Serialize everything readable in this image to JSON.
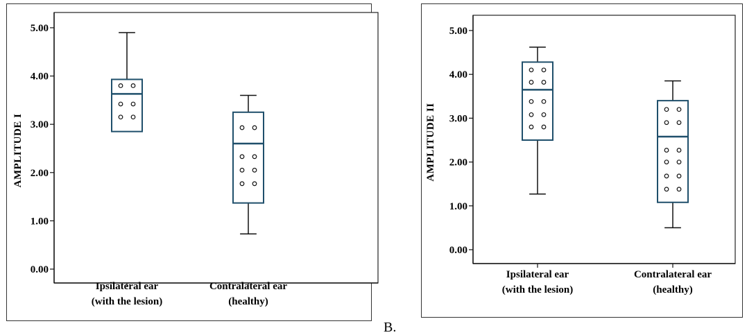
{
  "panel_label": "B.",
  "chart_data": [
    {
      "type": "box",
      "ylabel": "AMPLITUDE  I",
      "ylim": [
        0,
        5
      ],
      "yticks": [
        "0.00",
        "1.00",
        "2.00",
        "3.00",
        "4.00",
        "5.00"
      ],
      "categories": [
        {
          "line1": "Ipsilateral ear",
          "line2": "(with the lesion)"
        },
        {
          "line1": "Contralateral ear",
          "line2": "(healthy)"
        }
      ],
      "boxes": [
        {
          "min": 2.85,
          "q1": 2.85,
          "median": 3.63,
          "q3": 3.93,
          "max": 4.9,
          "dot_rows": [
            3.8,
            3.42,
            3.15
          ]
        },
        {
          "min": 0.73,
          "q1": 1.37,
          "median": 2.6,
          "q3": 3.25,
          "max": 3.6,
          "dot_rows": [
            2.93,
            2.33,
            2.05,
            1.77
          ]
        }
      ]
    },
    {
      "type": "box",
      "ylabel": "AMPLITUDE  II",
      "ylim": [
        0,
        5
      ],
      "yticks": [
        "0.00",
        "1.00",
        "2.00",
        "3.00",
        "4.00",
        "5.00"
      ],
      "categories": [
        {
          "line1": "Ipsilateral ear",
          "line2": "(with the lesion)"
        },
        {
          "line1": "Contralateral ear",
          "line2": "(healthy)"
        }
      ],
      "boxes": [
        {
          "min": 1.27,
          "q1": 2.5,
          "median": 3.65,
          "q3": 4.28,
          "max": 4.62,
          "dot_rows": [
            4.1,
            3.82,
            3.38,
            3.08,
            2.8
          ]
        },
        {
          "min": 0.5,
          "q1": 1.08,
          "median": 2.58,
          "q3": 3.4,
          "max": 3.85,
          "dot_rows": [
            3.2,
            2.9,
            2.27,
            2.0,
            1.68,
            1.38
          ]
        }
      ]
    }
  ]
}
